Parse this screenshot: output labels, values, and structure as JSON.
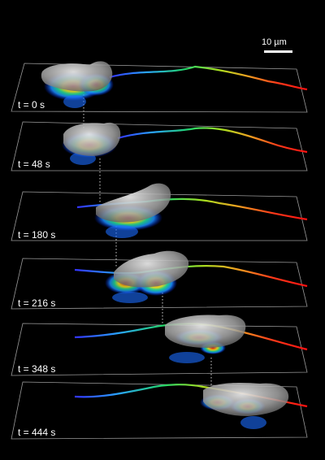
{
  "scale_bar": {
    "label": "10 µm"
  },
  "panels": [
    {
      "time_label": "t = 0 s"
    },
    {
      "time_label": "t = 48 s"
    },
    {
      "time_label": "t = 180 s"
    },
    {
      "time_label": "t = 216 s"
    },
    {
      "time_label": "t = 348 s"
    },
    {
      "time_label": "t = 444 s"
    }
  ],
  "colors": {
    "background": "#000000",
    "plane_outline": "#9a9a9a",
    "cell_surface": "#b9b9b9",
    "track_start": "#3a3aff",
    "track_mid": "#22d66a",
    "track_end": "#ff1a1a"
  }
}
